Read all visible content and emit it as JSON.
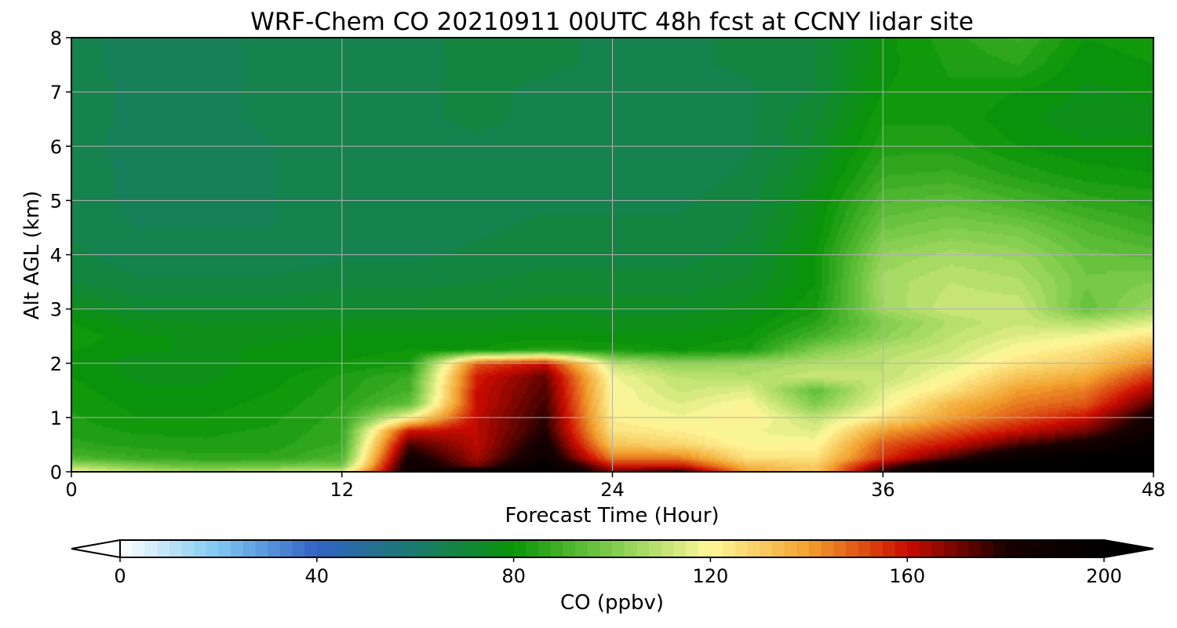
{
  "chart_data": {
    "type": "heatmap",
    "title": "WRF-Chem CO  20210911 00UTC 48h fcst at CCNY lidar site",
    "xlabel": "Forecast Time (Hour)",
    "ylabel": "Alt AGL (km)",
    "xlim": [
      0,
      48
    ],
    "ylim": [
      0,
      8
    ],
    "xticks": [
      "0",
      "12",
      "24",
      "36",
      "48"
    ],
    "yticks": [
      "0",
      "1",
      "2",
      "3",
      "4",
      "5",
      "6",
      "7",
      "8"
    ],
    "grid": true,
    "colorbar": {
      "label": "CO  (ppbv)",
      "min": 0,
      "max": 200,
      "ticks": [
        "0",
        "40",
        "80",
        "120",
        "160",
        "200"
      ],
      "extend": "both",
      "colors": [
        "#ffffff",
        "#7ec8f2",
        "#3262c4",
        "#1b7a6e",
        "#0a9407",
        "#7fcc4b",
        "#fff89a",
        "#f2a02d",
        "#cc0c00",
        "#1a0000",
        "#000000"
      ]
    },
    "x": [
      0,
      3,
      6,
      9,
      12,
      15,
      18,
      21,
      24,
      27,
      30,
      33,
      36,
      39,
      42,
      45,
      48
    ],
    "y": [
      0,
      0.1,
      0.25,
      0.5,
      0.75,
      1,
      1.25,
      1.5,
      1.75,
      2,
      2.25,
      2.5,
      2.75,
      3,
      3.5,
      4,
      4.5,
      5,
      5.5,
      6,
      6.5,
      7,
      7.5,
      8
    ],
    "z": [
      [
        120,
        110,
        105,
        110,
        115,
        190,
        200,
        200,
        170,
        180,
        140,
        130,
        180,
        200,
        200,
        200,
        200
      ],
      [
        108,
        100,
        96,
        98,
        100,
        190,
        170,
        200,
        160,
        160,
        135,
        130,
        170,
        200,
        200,
        200,
        200
      ],
      [
        92,
        88,
        86,
        86,
        92,
        185,
        165,
        190,
        145,
        145,
        125,
        125,
        155,
        175,
        195,
        200,
        200
      ],
      [
        86,
        84,
        83,
        84,
        88,
        175,
        162,
        185,
        132,
        128,
        120,
        120,
        150,
        160,
        175,
        185,
        198
      ],
      [
        84,
        82,
        82,
        83,
        87,
        160,
        162,
        180,
        125,
        122,
        118,
        115,
        140,
        150,
        160,
        170,
        190
      ],
      [
        83,
        80,
        80,
        82,
        86,
        120,
        162,
        178,
        122,
        118,
        122,
        110,
        125,
        140,
        150,
        160,
        185
      ],
      [
        82,
        79,
        79,
        81,
        85,
        95,
        160,
        176,
        120,
        115,
        120,
        100,
        118,
        135,
        145,
        150,
        175
      ],
      [
        81,
        78,
        78,
        80,
        84,
        90,
        160,
        174,
        120,
        112,
        115,
        95,
        115,
        125,
        140,
        145,
        165
      ],
      [
        80,
        77,
        77,
        79,
        83,
        88,
        158,
        172,
        118,
        110,
        108,
        112,
        110,
        120,
        132,
        138,
        155
      ],
      [
        80,
        76,
        77,
        78,
        80,
        82,
        150,
        160,
        110,
        102,
        105,
        108,
        110,
        115,
        125,
        130,
        145
      ],
      [
        80,
        78,
        77,
        78,
        79,
        80,
        80,
        84,
        82,
        80,
        82,
        100,
        108,
        112,
        120,
        125,
        135
      ],
      [
        82,
        78,
        77,
        77,
        78,
        78,
        78,
        79,
        78,
        78,
        80,
        90,
        102,
        110,
        115,
        118,
        125
      ],
      [
        80,
        76,
        75,
        75,
        76,
        76,
        76,
        77,
        76,
        76,
        78,
        85,
        100,
        108,
        112,
        108,
        115
      ],
      [
        76,
        72,
        72,
        72,
        73,
        73,
        73,
        74,
        74,
        74,
        76,
        82,
        105,
        112,
        112,
        96,
        105
      ],
      [
        70,
        68,
        68,
        68,
        69,
        69,
        70,
        71,
        71,
        71,
        73,
        80,
        106,
        110,
        108,
        98,
        100
      ],
      [
        68,
        66,
        66,
        66,
        67,
        67,
        68,
        69,
        69,
        69,
        71,
        80,
        103,
        106,
        104,
        96,
        94
      ],
      [
        67,
        65,
        65,
        65,
        66,
        66,
        67,
        68,
        68,
        68,
        70,
        78,
        97,
        100,
        98,
        92,
        88
      ],
      [
        67,
        64,
        64,
        65,
        65,
        66,
        67,
        67,
        67,
        67,
        69,
        77,
        92,
        94,
        90,
        86,
        84
      ],
      [
        67,
        64,
        64,
        65,
        65,
        66,
        67,
        67,
        66,
        66,
        68,
        75,
        87,
        88,
        84,
        81,
        80
      ],
      [
        67,
        63,
        63,
        65,
        65,
        66,
        67,
        66,
        65,
        65,
        67,
        73,
        84,
        84,
        80,
        78,
        78
      ],
      [
        67,
        64,
        64,
        66,
        66,
        67,
        68,
        67,
        66,
        66,
        67,
        72,
        82,
        82,
        78,
        76,
        77
      ],
      [
        67,
        64,
        64,
        66,
        66,
        67,
        68,
        67,
        66,
        66,
        67,
        70,
        80,
        82,
        80,
        77,
        78
      ],
      [
        66,
        64,
        64,
        66,
        66,
        67,
        68,
        68,
        67,
        67,
        68,
        70,
        79,
        83,
        85,
        78,
        80
      ],
      [
        66,
        64,
        64,
        66,
        66,
        67,
        68,
        68,
        67,
        67,
        68,
        70,
        79,
        84,
        88,
        80,
        82
      ]
    ]
  }
}
